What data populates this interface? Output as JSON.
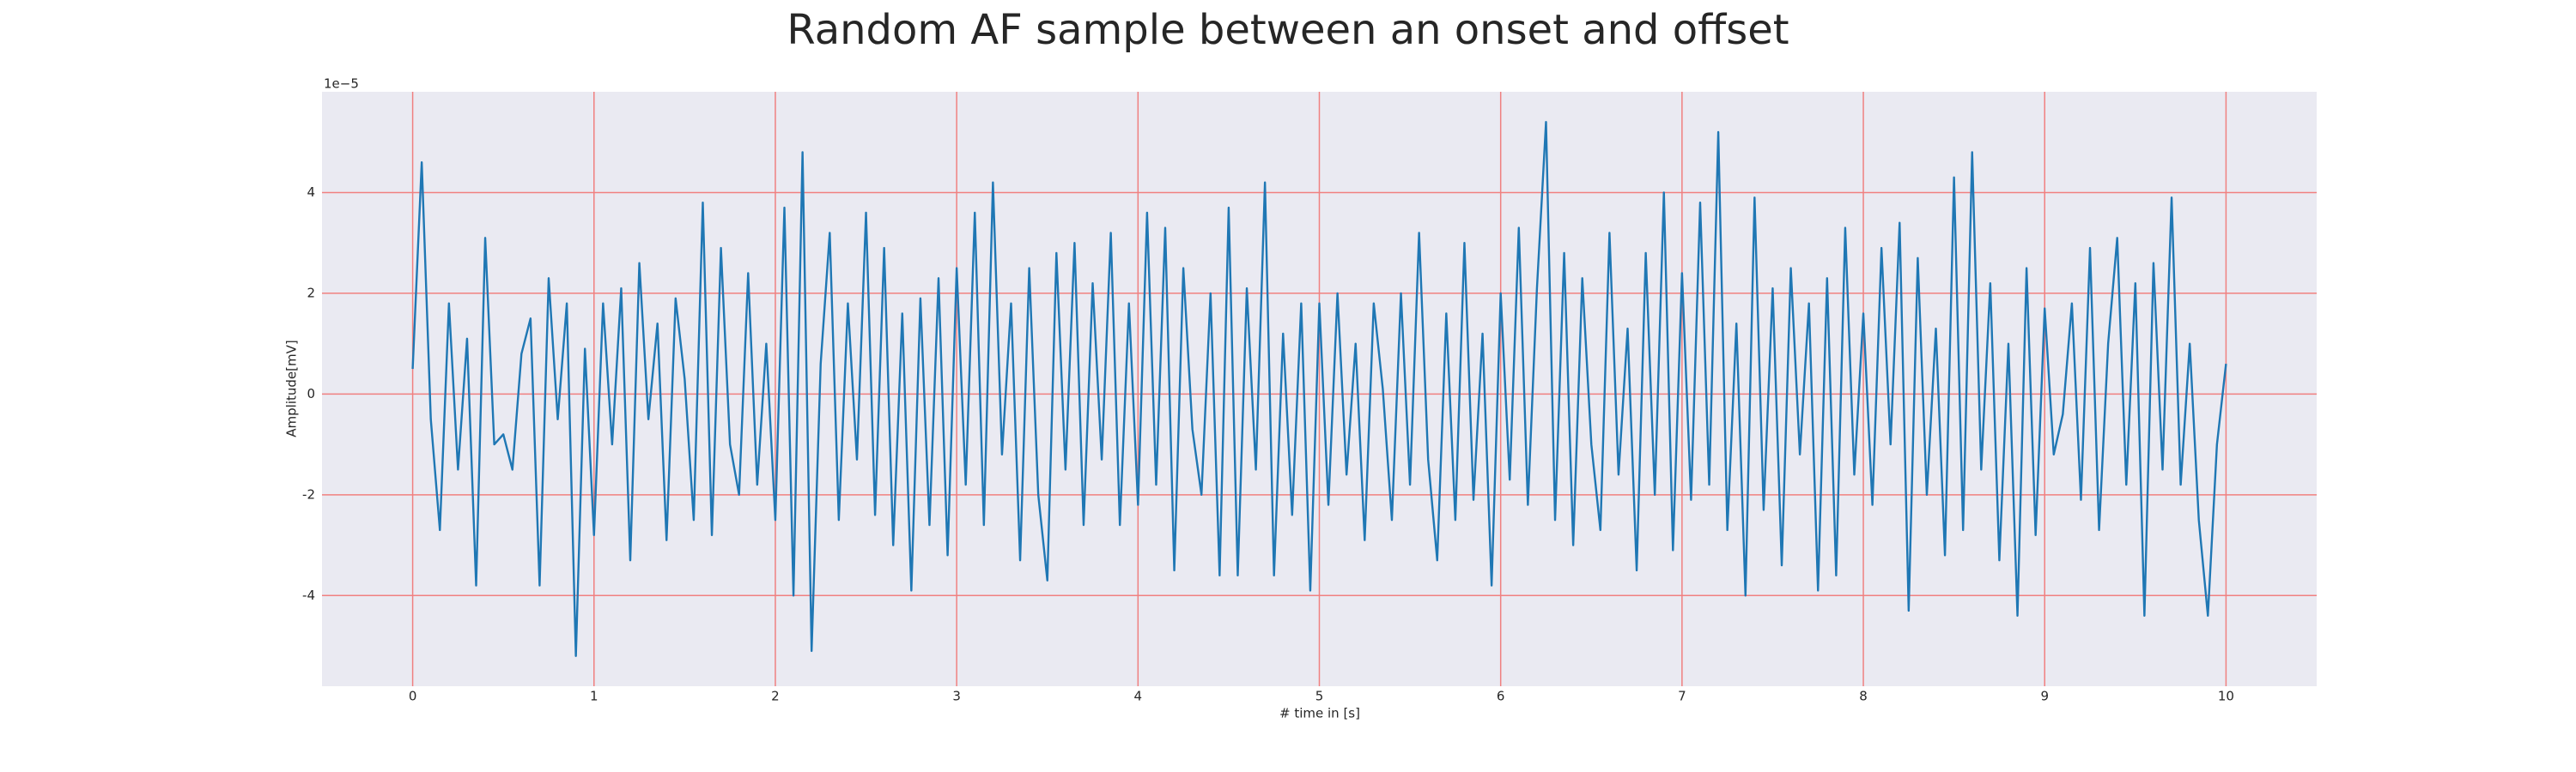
{
  "chart_data": {
    "type": "line",
    "title": "Random AF sample between an onset and offset",
    "xlabel": "# time in [s]",
    "ylabel": "Amplitude[mV]",
    "y_offset_label": "1e−5",
    "xlim": [
      -0.5,
      10.5
    ],
    "ylim": [
      -5.8,
      6
    ],
    "xticks": [
      0,
      1,
      2,
      3,
      4,
      5,
      6,
      7,
      8,
      9,
      10
    ],
    "yticks": [
      -4,
      -2,
      0,
      2,
      4
    ],
    "grid": true,
    "grid_color": "#f08080",
    "background": "#eaeaf2",
    "series": [
      {
        "color": "#1f77b4",
        "x": [
          0,
          0.05,
          0.1,
          0.15,
          0.2,
          0.25,
          0.3,
          0.35,
          0.4,
          0.45,
          0.5,
          0.55,
          0.6,
          0.65,
          0.7,
          0.75,
          0.8,
          0.85,
          0.9,
          0.95,
          1,
          1.05,
          1.1,
          1.15,
          1.2,
          1.25,
          1.3,
          1.35,
          1.4,
          1.45,
          1.5,
          1.55,
          1.6,
          1.65,
          1.7,
          1.75,
          1.8,
          1.85,
          1.9,
          1.95,
          2,
          2.05,
          2.1,
          2.15,
          2.2,
          2.25,
          2.3,
          2.35,
          2.4,
          2.45,
          2.5,
          2.55,
          2.6,
          2.65,
          2.7,
          2.75,
          2.8,
          2.85,
          2.9,
          2.95,
          3,
          3.05,
          3.1,
          3.15,
          3.2,
          3.25,
          3.3,
          3.35,
          3.4,
          3.45,
          3.5,
          3.55,
          3.6,
          3.65,
          3.7,
          3.75,
          3.8,
          3.85,
          3.9,
          3.95,
          4,
          4.05,
          4.1,
          4.15,
          4.2,
          4.25,
          4.3,
          4.35,
          4.4,
          4.45,
          4.5,
          4.55,
          4.6,
          4.65,
          4.7,
          4.75,
          4.8,
          4.85,
          4.9,
          4.95,
          5,
          5.05,
          5.1,
          5.15,
          5.2,
          5.25,
          5.3,
          5.35,
          5.4,
          5.45,
          5.5,
          5.55,
          5.6,
          5.65,
          5.7,
          5.75,
          5.8,
          5.85,
          5.9,
          5.95,
          6,
          6.05,
          6.1,
          6.15,
          6.2,
          6.25,
          6.3,
          6.35,
          6.4,
          6.45,
          6.5,
          6.55,
          6.6,
          6.65,
          6.7,
          6.75,
          6.8,
          6.85,
          6.9,
          6.95,
          7,
          7.05,
          7.1,
          7.15,
          7.2,
          7.25,
          7.3,
          7.35,
          7.4,
          7.45,
          7.5,
          7.55,
          7.6,
          7.65,
          7.7,
          7.75,
          7.8,
          7.85,
          7.9,
          7.95,
          8,
          8.05,
          8.1,
          8.15,
          8.2,
          8.25,
          8.3,
          8.35,
          8.4,
          8.45,
          8.5,
          8.55,
          8.6,
          8.65,
          8.7,
          8.75,
          8.8,
          8.85,
          8.9,
          8.95,
          9,
          9.05,
          9.1,
          9.15,
          9.2,
          9.25,
          9.3,
          9.35,
          9.4,
          9.45,
          9.5,
          9.55,
          9.6,
          9.65,
          9.7,
          9.75,
          9.8,
          9.85,
          9.9,
          9.95,
          10
        ],
        "values": [
          0.5,
          4.6,
          -0.5,
          -2.7,
          1.8,
          -1.5,
          1.1,
          -3.8,
          3.1,
          -1.0,
          -0.8,
          -1.5,
          0.8,
          1.5,
          -3.8,
          2.3,
          -0.5,
          1.8,
          -5.2,
          0.9,
          -2.8,
          1.8,
          -1.0,
          2.1,
          -3.3,
          2.6,
          -0.5,
          1.4,
          -2.9,
          1.9,
          0.3,
          -2.5,
          3.8,
          -2.8,
          2.9,
          -1.0,
          -2.0,
          2.4,
          -1.8,
          1.0,
          -2.5,
          3.7,
          -4.0,
          4.8,
          -5.1,
          0.6,
          3.2,
          -2.5,
          1.8,
          -1.3,
          3.6,
          -2.4,
          2.9,
          -3.0,
          1.6,
          -3.9,
          1.9,
          -2.6,
          2.3,
          -3.2,
          2.5,
          -1.8,
          3.6,
          -2.6,
          4.2,
          -1.2,
          1.8,
          -3.3,
          2.5,
          -2.0,
          -3.7,
          2.8,
          -1.5,
          3.0,
          -2.6,
          2.2,
          -1.3,
          3.2,
          -2.6,
          1.8,
          -2.2,
          3.6,
          -1.8,
          3.3,
          -3.5,
          2.5,
          -0.7,
          -2.0,
          2.0,
          -3.6,
          3.7,
          -3.6,
          2.1,
          -1.5,
          4.2,
          -3.6,
          1.2,
          -2.4,
          1.8,
          -3.9,
          1.8,
          -2.2,
          2.0,
          -1.6,
          1.0,
          -2.9,
          1.8,
          0.1,
          -2.5,
          2.0,
          -1.8,
          3.2,
          -1.3,
          -3.3,
          1.6,
          -2.5,
          3.0,
          -2.1,
          1.2,
          -3.8,
          2.0,
          -1.7,
          3.3,
          -2.2,
          2.1,
          5.4,
          -2.5,
          2.8,
          -3.0,
          2.3,
          -1.0,
          -2.7,
          3.2,
          -1.6,
          1.3,
          -3.5,
          2.8,
          -2.0,
          4.0,
          -3.1,
          2.4,
          -2.1,
          3.8,
          -1.8,
          5.2,
          -2.7,
          1.4,
          -4.0,
          3.9,
          -2.3,
          2.1,
          -3.4,
          2.5,
          -1.2,
          1.8,
          -3.9,
          2.3,
          -3.6,
          3.3,
          -1.6,
          1.6,
          -2.2,
          2.9,
          -1.0,
          3.4,
          -4.3,
          2.7,
          -2.0,
          1.3,
          -3.2,
          4.3,
          -2.7,
          4.8,
          -1.5,
          2.2,
          -3.3,
          1.0,
          -4.4,
          2.5,
          -2.8,
          1.7,
          -1.2,
          -0.4,
          1.8,
          -2.1,
          2.9,
          -2.7,
          1.0,
          3.1,
          -1.8,
          2.2,
          -4.4,
          2.6,
          -1.5,
          3.9,
          -1.8,
          1.0,
          -2.5,
          -4.4,
          -1.0,
          0.6
        ]
      }
    ]
  }
}
